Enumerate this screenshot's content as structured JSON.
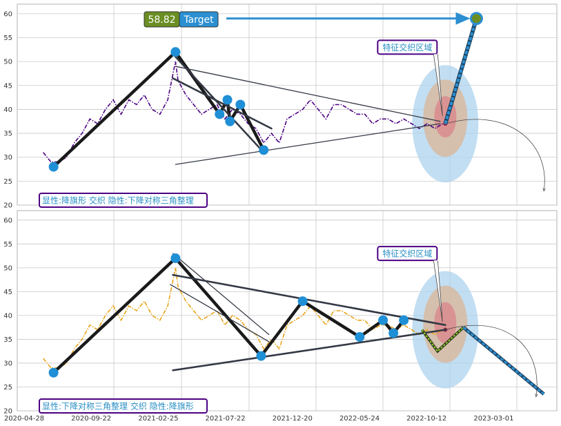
{
  "chart_data": [
    {
      "type": "line",
      "panel": "top",
      "ylim": [
        20,
        62
      ],
      "yticks": [
        20,
        25,
        30,
        35,
        40,
        45,
        50,
        55,
        60
      ],
      "grid": true,
      "series": [
        {
          "color": "#4b0082",
          "style": "dash-dot",
          "points": [
            [
              0,
              31
            ],
            [
              3,
              29
            ],
            [
              6,
              29
            ],
            [
              9,
              30
            ],
            [
              12,
              33
            ],
            [
              15,
              35
            ],
            [
              18,
              38
            ],
            [
              21,
              37
            ],
            [
              24,
              40
            ],
            [
              27,
              42
            ],
            [
              30,
              39
            ],
            [
              33,
              42
            ],
            [
              36,
              41
            ],
            [
              39,
              43
            ],
            [
              42,
              40
            ],
            [
              45,
              39
            ],
            [
              48,
              42
            ],
            [
              51,
              50
            ],
            [
              52,
              46
            ],
            [
              55,
              43
            ],
            [
              58,
              41
            ],
            [
              61,
              39
            ],
            [
              64,
              40
            ],
            [
              67,
              41
            ],
            [
              70,
              38
            ],
            [
              73,
              40
            ],
            [
              76,
              39
            ],
            [
              79,
              37
            ],
            [
              82,
              36
            ],
            [
              85,
              33
            ],
            [
              88,
              35
            ],
            [
              91,
              33
            ],
            [
              94,
              38
            ],
            [
              97,
              39
            ],
            [
              100,
              40
            ],
            [
              103,
              42
            ],
            [
              106,
              40
            ],
            [
              109,
              38
            ],
            [
              112,
              41
            ],
            [
              115,
              41
            ],
            [
              118,
              40
            ],
            [
              121,
              39
            ],
            [
              124,
              39
            ],
            [
              127,
              37
            ],
            [
              130,
              38
            ],
            [
              133,
              38
            ],
            [
              136,
              37
            ],
            [
              139,
              38
            ],
            [
              142,
              37
            ],
            [
              145,
              36
            ],
            [
              148,
              37
            ],
            [
              151,
              36
            ],
            [
              154,
              37
            ]
          ]
        }
      ],
      "pattern_lines": [
        {
          "from": [
            4,
            28
          ],
          "to": [
            51,
            52
          ],
          "style": "thick"
        },
        {
          "from": [
            51,
            52
          ],
          "to": [
            68,
            39
          ],
          "style": "thick"
        },
        {
          "from": [
            68,
            39
          ],
          "to": [
            71,
            42
          ],
          "style": "thick"
        },
        {
          "from": [
            71,
            42
          ],
          "to": [
            72,
            37.5
          ],
          "style": "thick"
        },
        {
          "from": [
            72,
            37.5
          ],
          "to": [
            76,
            41
          ],
          "style": "thick"
        },
        {
          "from": [
            76,
            41
          ],
          "to": [
            85,
            31.5
          ],
          "style": "thick"
        },
        {
          "from": [
            51,
            51
          ],
          "to": [
            85,
            31
          ],
          "style": "medium"
        },
        {
          "from": [
            50,
            46.5
          ],
          "to": [
            88,
            36
          ],
          "style": "medium"
        },
        {
          "from": [
            51,
            49
          ],
          "to": [
            153,
            37.5
          ],
          "style": "thin"
        },
        {
          "from": [
            51,
            28.5
          ],
          "to": [
            153,
            37
          ],
          "style": "thin"
        }
      ],
      "markers": [
        {
          "x": 4,
          "y": 28
        },
        {
          "x": 51,
          "y": 52
        },
        {
          "x": 68,
          "y": 39
        },
        {
          "x": 71,
          "y": 42
        },
        {
          "x": 72,
          "y": 37.5
        },
        {
          "x": 76,
          "y": 41
        },
        {
          "x": 85,
          "y": 31.5
        }
      ],
      "zone": {
        "x": 155,
        "y": 37,
        "label": "特征交织区域"
      },
      "target": {
        "value": "58.82",
        "label": "Target",
        "x": 167,
        "y": 59
      },
      "target_arrow": {
        "from": [
          155,
          37
        ],
        "to": [
          167,
          59
        ]
      },
      "forecast_curve": {
        "from": [
          155,
          37
        ],
        "to": [
          193,
          23
        ]
      },
      "annotation": "显性:降旗形 交织 隐性:下降对称三角整理"
    },
    {
      "type": "line",
      "panel": "bottom",
      "ylim": [
        20,
        62
      ],
      "yticks": [
        20,
        25,
        30,
        35,
        40,
        45,
        50,
        55,
        60
      ],
      "grid": true,
      "xticks": [
        "2020-04-28",
        "2020-09-22",
        "2021-02-25",
        "2021-07-22",
        "2021-12-20",
        "2022-05-24",
        "2022-10-12",
        "2023-03-01"
      ],
      "series": [
        {
          "color": "#e8a317",
          "style": "dash-dot",
          "points": [
            [
              0,
              31
            ],
            [
              3,
              29
            ],
            [
              6,
              29
            ],
            [
              9,
              30
            ],
            [
              12,
              33
            ],
            [
              15,
              35
            ],
            [
              18,
              38
            ],
            [
              21,
              37
            ],
            [
              24,
              40
            ],
            [
              27,
              42
            ],
            [
              30,
              39
            ],
            [
              33,
              42
            ],
            [
              36,
              41
            ],
            [
              39,
              43
            ],
            [
              42,
              40
            ],
            [
              45,
              39
            ],
            [
              48,
              42
            ],
            [
              51,
              50
            ],
            [
              52,
              46
            ],
            [
              55,
              43
            ],
            [
              58,
              41
            ],
            [
              61,
              39
            ],
            [
              64,
              40
            ],
            [
              67,
              41
            ],
            [
              70,
              38
            ],
            [
              73,
              40
            ],
            [
              76,
              39
            ],
            [
              79,
              37
            ],
            [
              82,
              36
            ],
            [
              85,
              33
            ],
            [
              88,
              35
            ],
            [
              91,
              33
            ],
            [
              94,
              38
            ],
            [
              97,
              39
            ],
            [
              100,
              40
            ],
            [
              103,
              42
            ],
            [
              106,
              40
            ],
            [
              109,
              38
            ],
            [
              112,
              41
            ],
            [
              115,
              41
            ],
            [
              118,
              40
            ],
            [
              121,
              39
            ],
            [
              124,
              39
            ],
            [
              127,
              37
            ],
            [
              130,
              38
            ],
            [
              133,
              38
            ],
            [
              136,
              37
            ],
            [
              139,
              38
            ],
            [
              142,
              37
            ],
            [
              145,
              36
            ],
            [
              148,
              37
            ],
            [
              151,
              36
            ],
            [
              154,
              37
            ]
          ]
        }
      ],
      "pattern_lines": [
        {
          "from": [
            4,
            28
          ],
          "to": [
            51,
            52
          ],
          "style": "thick"
        },
        {
          "from": [
            51,
            52
          ],
          "to": [
            84,
            31.5
          ],
          "style": "thick"
        },
        {
          "from": [
            84,
            31.5
          ],
          "to": [
            100,
            43
          ],
          "style": "thick"
        },
        {
          "from": [
            100,
            43
          ],
          "to": [
            122,
            35.5
          ],
          "style": "thick"
        },
        {
          "from": [
            122,
            35.5
          ],
          "to": [
            131,
            39
          ],
          "style": "thick"
        },
        {
          "from": [
            131,
            39
          ],
          "to": [
            135,
            36.3
          ],
          "style": "thick"
        },
        {
          "from": [
            135,
            36.3
          ],
          "to": [
            139,
            39
          ],
          "style": "thick"
        },
        {
          "from": [
            50,
            48.5
          ],
          "to": [
            155,
            38
          ],
          "style": "medium"
        },
        {
          "from": [
            50,
            28.5
          ],
          "to": [
            155,
            37
          ],
          "style": "medium"
        },
        {
          "from": [
            50,
            53
          ],
          "to": [
            87,
            36
          ],
          "style": "thin"
        },
        {
          "from": [
            49,
            46.5
          ],
          "to": [
            87,
            34.5
          ],
          "style": "thin"
        }
      ],
      "markers": [
        {
          "x": 4,
          "y": 28
        },
        {
          "x": 51,
          "y": 52
        },
        {
          "x": 84,
          "y": 31.5
        },
        {
          "x": 100,
          "y": 43
        },
        {
          "x": 122,
          "y": 35.5
        },
        {
          "x": 131,
          "y": 39
        },
        {
          "x": 135,
          "y": 36.3
        },
        {
          "x": 139,
          "y": 39
        }
      ],
      "zone": {
        "x": 155,
        "y": 37,
        "label": "特征交织区域"
      },
      "forecast_path": [
        [
          146,
          37
        ],
        [
          152,
          32.5
        ],
        [
          162,
          37.5
        ],
        [
          193,
          23.5
        ]
      ],
      "forecast_curve": {
        "from": [
          155,
          37
        ],
        "to": [
          190,
          23
        ]
      },
      "annotation": "显性:下降对称三角整理 交织 隐性:降旗形"
    }
  ],
  "colors": {
    "grid": "#c8c8c8",
    "frame": "#b0b0b0",
    "thick_line": "#1a1a1a",
    "medium_line": "#333844",
    "marker": "#1f8fd6",
    "zone_outer": "#aed3ee",
    "zone_mid": "#d9b79b",
    "zone_inner": "#d9848a",
    "zone_center": "#8b2d4a",
    "target_value_bg": "#6b8e23",
    "target_label_bg": "#2b8fd1",
    "target_arrow": "#2b8fd1",
    "label_border": "#4b0082",
    "label_text": "#2a8fc4",
    "forecast": "#2b8fd1"
  }
}
